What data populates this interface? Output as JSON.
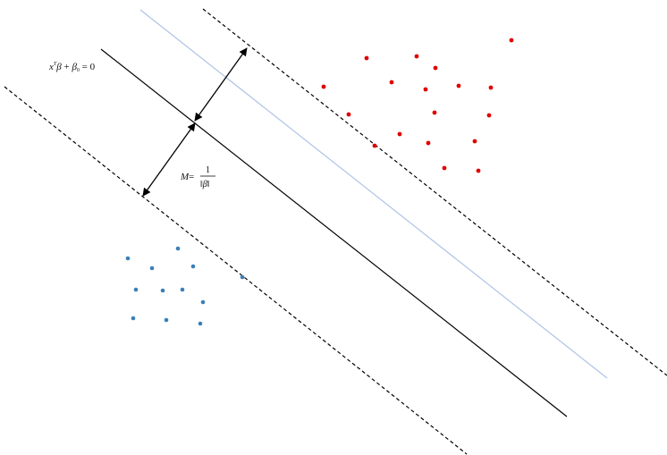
{
  "equation": {
    "x": "x",
    "T": "T",
    "beta": "β",
    "plus": " + ",
    "beta0": "β",
    "zero_sub": "0",
    "equals_zero": " = 0"
  },
  "margin_formula": {
    "M": "M",
    "equals": " =",
    "numerator": "1",
    "denominator": "‖β‖"
  },
  "colors": {
    "hyperplane": "#000000",
    "margin_lines": "#000000",
    "shifted_line": "#aec3e6",
    "positive_points": "#e00000",
    "negative_points": "#3a7fb8"
  }
}
